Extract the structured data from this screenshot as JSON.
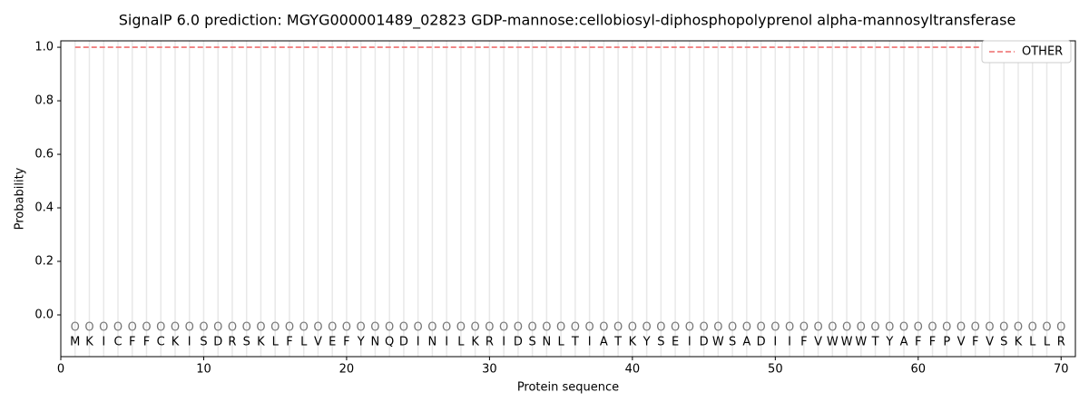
{
  "chart_data": {
    "type": "line",
    "title": "SignalP 6.0 prediction: MGYG000001489_02823 GDP-mannose:cellobiosyl-diphosphopolyprenol alpha-mannosyltransferase",
    "xlabel": "Protein sequence",
    "ylabel": "Probability",
    "x": [
      1,
      2,
      3,
      4,
      5,
      6,
      7,
      8,
      9,
      10,
      11,
      12,
      13,
      14,
      15,
      16,
      17,
      18,
      19,
      20,
      21,
      22,
      23,
      24,
      25,
      26,
      27,
      28,
      29,
      30,
      31,
      32,
      33,
      34,
      35,
      36,
      37,
      38,
      39,
      40,
      41,
      42,
      43,
      44,
      45,
      46,
      47,
      48,
      49,
      50,
      51,
      52,
      53,
      54,
      55,
      56,
      57,
      58,
      59,
      60,
      61,
      62,
      63,
      64,
      65,
      66,
      67,
      68,
      69,
      70
    ],
    "residues": [
      "M",
      "K",
      "I",
      "C",
      "F",
      "F",
      "C",
      "K",
      "I",
      "S",
      "D",
      "R",
      "S",
      "K",
      "L",
      "F",
      "L",
      "V",
      "E",
      "F",
      "Y",
      "N",
      "Q",
      "D",
      "I",
      "N",
      "I",
      "L",
      "K",
      "R",
      "I",
      "D",
      "S",
      "N",
      "L",
      "T",
      "I",
      "A",
      "T",
      "K",
      "Y",
      "S",
      "E",
      "I",
      "D",
      "W",
      "S",
      "A",
      "D",
      "I",
      "I",
      "F",
      "V",
      "W",
      "W",
      "W",
      "T",
      "Y",
      "A",
      "F",
      "F",
      "P",
      "V",
      "F",
      "V",
      "S",
      "K",
      "L",
      "L",
      "R"
    ],
    "region_labels": [
      "O",
      "O",
      "O",
      "O",
      "O",
      "O",
      "O",
      "O",
      "O",
      "O",
      "O",
      "O",
      "O",
      "O",
      "O",
      "O",
      "O",
      "O",
      "O",
      "O",
      "O",
      "O",
      "O",
      "O",
      "O",
      "O",
      "O",
      "O",
      "O",
      "O",
      "O",
      "O",
      "O",
      "O",
      "O",
      "O",
      "O",
      "O",
      "O",
      "O",
      "O",
      "O",
      "O",
      "O",
      "O",
      "O",
      "O",
      "O",
      "O",
      "O",
      "O",
      "O",
      "O",
      "O",
      "O",
      "O",
      "O",
      "O",
      "O",
      "O",
      "O",
      "O",
      "O",
      "O",
      "O",
      "O",
      "O",
      "O",
      "O",
      "O"
    ],
    "series": [
      {
        "name": "OTHER",
        "color": "#f08080",
        "dashed": true,
        "values": [
          1,
          1,
          1,
          1,
          1,
          1,
          1,
          1,
          1,
          1,
          1,
          1,
          1,
          1,
          1,
          1,
          1,
          1,
          1,
          1,
          1,
          1,
          1,
          1,
          1,
          1,
          1,
          1,
          1,
          1,
          1,
          1,
          1,
          1,
          1,
          1,
          1,
          1,
          1,
          1,
          1,
          1,
          1,
          1,
          1,
          1,
          1,
          1,
          1,
          1,
          1,
          1,
          1,
          1,
          1,
          1,
          1,
          1,
          1,
          1,
          1,
          1,
          1,
          1,
          1,
          1,
          1,
          1,
          1,
          1
        ]
      }
    ],
    "xlim": [
      0,
      71
    ],
    "xticks": [
      0,
      10,
      20,
      30,
      40,
      50,
      60,
      70
    ],
    "ylim": [
      -0.156,
      1.024
    ],
    "yticks": [
      {
        "value": 0,
        "label": "0.0"
      },
      0.2,
      0.4,
      0.6,
      0.8,
      {
        "value": 1,
        "label": "1.0"
      }
    ],
    "legend": "upper right"
  }
}
